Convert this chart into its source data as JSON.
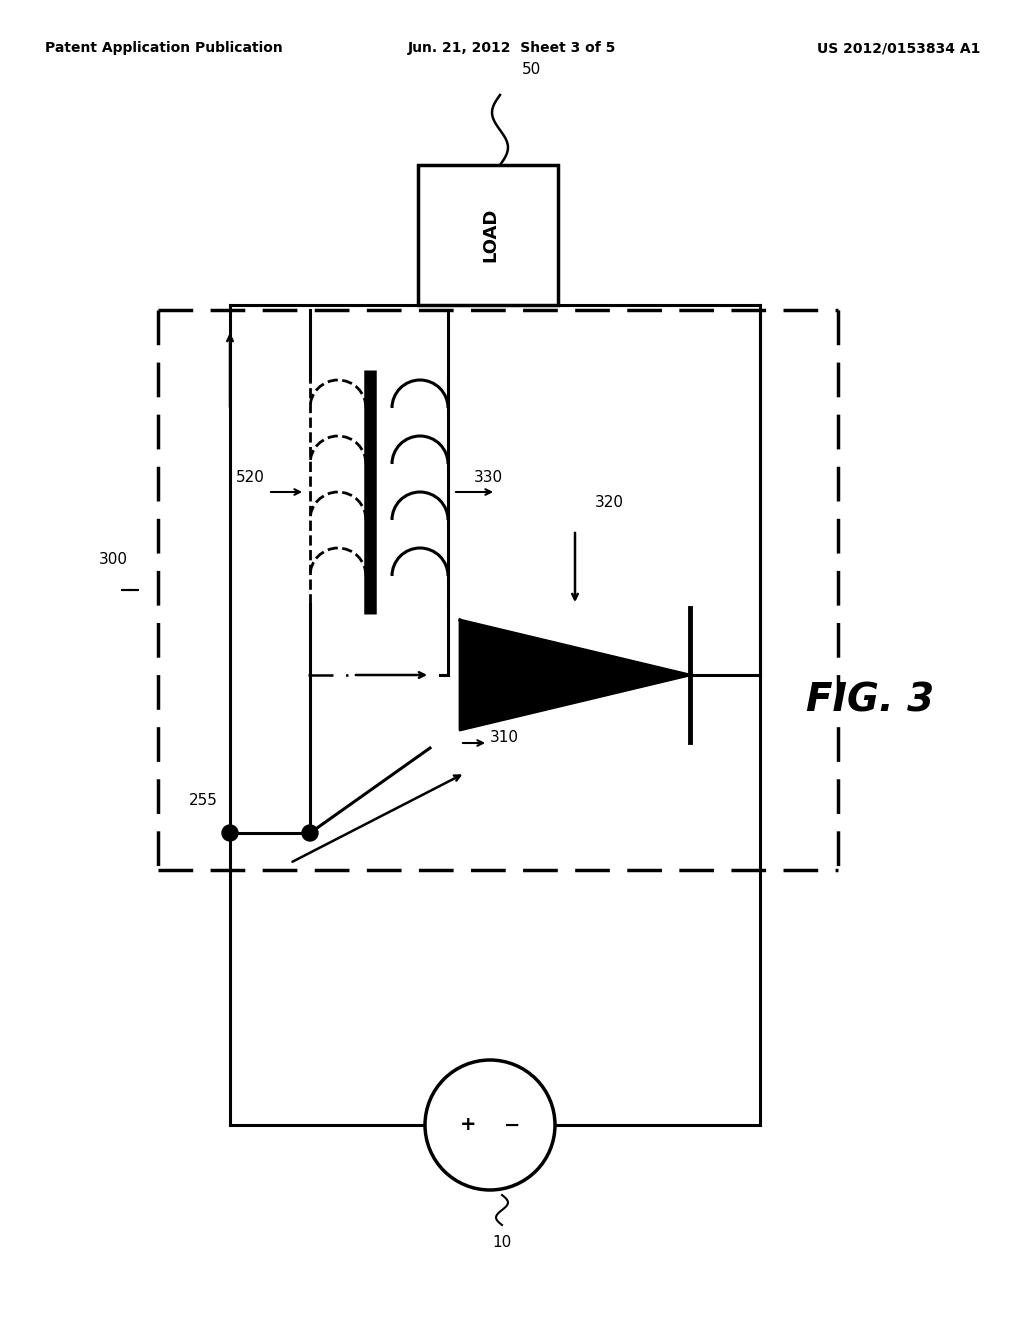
{
  "bg_color": "#ffffff",
  "header_left": "Patent Application Publication",
  "header_center": "Jun. 21, 2012  Sheet 3 of 5",
  "header_right": "US 2012/0153834 A1",
  "fig_label": "FIG. 3",
  "labels": {
    "load": "LOAD",
    "load_ref": "50",
    "trans_primary": "520",
    "trans_secondary": "330",
    "diode": "320",
    "switch": "310",
    "node255": "255",
    "box300": "300",
    "battery": "10"
  },
  "colors": {
    "black": "#000000",
    "white": "#ffffff"
  }
}
